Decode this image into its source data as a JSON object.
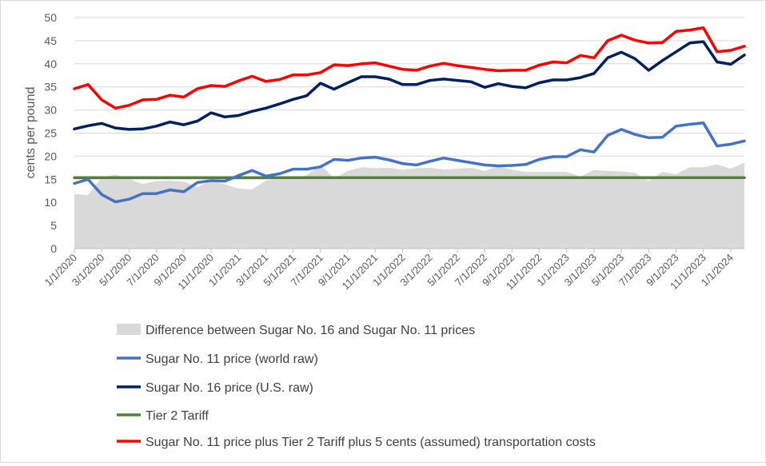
{
  "chart_data": {
    "type": "line",
    "title": "",
    "ylabel": "cents per pound",
    "xlabel": "",
    "ylim": [
      0,
      50
    ],
    "yticks": [
      0,
      5,
      10,
      15,
      20,
      25,
      30,
      35,
      40,
      45,
      50
    ],
    "grid": true,
    "legend_placement": "bottom",
    "x_tick_labels": [
      "1/1/2020",
      "3/1/2020",
      "5/1/2020",
      "7/1/2020",
      "9/1/2020",
      "11/1/2020",
      "1/1/2021",
      "3/1/2021",
      "5/1/2021",
      "7/1/2021",
      "9/1/2021",
      "11/1/2021",
      "1/1/2022",
      "3/1/2022",
      "5/1/2022",
      "7/1/2022",
      "9/1/2022",
      "11/1/2022",
      "1/1/2023",
      "3/1/2023",
      "5/1/2023",
      "7/1/2023",
      "9/1/2023",
      "11/1/2023",
      "1/1/2024"
    ],
    "x_first": "1/1/2020",
    "x_last": "2/1/2024",
    "x_interval": "monthly",
    "series": [
      {
        "name": "Difference between Sugar No. 16 and Sugar No. 11 prices",
        "type": "area",
        "color": "#d9d9d9",
        "values": [
          11.8,
          11.6,
          15.4,
          16.0,
          15.1,
          14.0,
          14.6,
          14.7,
          14.5,
          13.3,
          14.7,
          13.9,
          13.0,
          12.8,
          14.7,
          15.1,
          15.1,
          15.9,
          18.1,
          15.2,
          16.8,
          17.6,
          17.4,
          17.5,
          17.1,
          17.4,
          17.5,
          17.1,
          17.3,
          17.5,
          16.8,
          17.8,
          17.1,
          16.6,
          16.6,
          16.6,
          16.6,
          15.6,
          17.0,
          16.8,
          16.7,
          16.4,
          14.6,
          16.6,
          16.1,
          17.6,
          17.6,
          18.2,
          17.3,
          18.6
        ]
      },
      {
        "name": "Sugar No. 11 price (world raw)",
        "type": "line",
        "color": "#4472c4",
        "values": [
          14.1,
          15.0,
          11.7,
          10.1,
          10.7,
          11.9,
          11.9,
          12.7,
          12.3,
          14.3,
          14.7,
          14.6,
          15.8,
          16.9,
          15.7,
          16.2,
          17.2,
          17.2,
          17.7,
          19.3,
          19.1,
          19.6,
          19.8,
          19.2,
          18.4,
          18.1,
          18.9,
          19.6,
          19.1,
          18.6,
          18.1,
          17.9,
          18.0,
          18.2,
          19.3,
          19.9,
          19.9,
          21.4,
          20.9,
          24.5,
          25.8,
          24.7,
          24.0,
          24.1,
          26.5,
          26.9,
          27.2,
          22.2,
          22.6,
          23.3
        ]
      },
      {
        "name": "Sugar No. 16 price (U.S. raw)",
        "type": "line",
        "color": "#002060",
        "values": [
          25.9,
          26.6,
          27.1,
          26.1,
          25.8,
          25.9,
          26.5,
          27.4,
          26.8,
          27.6,
          29.4,
          28.5,
          28.8,
          29.7,
          30.4,
          31.3,
          32.3,
          33.1,
          35.8,
          34.5,
          35.9,
          37.2,
          37.2,
          36.7,
          35.5,
          35.5,
          36.4,
          36.7,
          36.4,
          36.1,
          34.9,
          35.7,
          35.1,
          34.8,
          35.9,
          36.5,
          36.5,
          37.0,
          37.9,
          41.3,
          42.5,
          41.1,
          38.6,
          40.7,
          42.6,
          44.5,
          44.8,
          40.4,
          39.9,
          41.9
        ]
      },
      {
        "name": "Tier 2 Tariff",
        "type": "line",
        "color": "#548235",
        "values": [
          15.36,
          15.36,
          15.36,
          15.36,
          15.36,
          15.36,
          15.36,
          15.36,
          15.36,
          15.36,
          15.36,
          15.36,
          15.36,
          15.36,
          15.36,
          15.36,
          15.36,
          15.36,
          15.36,
          15.36,
          15.36,
          15.36,
          15.36,
          15.36,
          15.36,
          15.36,
          15.36,
          15.36,
          15.36,
          15.36,
          15.36,
          15.36,
          15.36,
          15.36,
          15.36,
          15.36,
          15.36,
          15.36,
          15.36,
          15.36,
          15.36,
          15.36,
          15.36,
          15.36,
          15.36,
          15.36,
          15.36,
          15.36,
          15.36,
          15.36
        ]
      },
      {
        "name": " Sugar No. 11 price plus Tier 2 Tariff plus 5 cents (assumed) transportation costs",
        "type": "line",
        "color": "#ff0000",
        "values": [
          34.6,
          35.5,
          32.2,
          30.4,
          31.0,
          32.2,
          32.3,
          33.2,
          32.8,
          34.6,
          35.3,
          35.1,
          36.3,
          37.3,
          36.2,
          36.6,
          37.6,
          37.6,
          38.1,
          39.8,
          39.6,
          40.0,
          40.2,
          39.5,
          38.8,
          38.6,
          39.5,
          40.1,
          39.6,
          39.2,
          38.8,
          38.5,
          38.6,
          38.6,
          39.7,
          40.4,
          40.2,
          41.8,
          41.3,
          45.0,
          46.2,
          45.1,
          44.5,
          44.6,
          47.0,
          47.3,
          47.8,
          42.6,
          42.9,
          43.8
        ]
      }
    ]
  }
}
